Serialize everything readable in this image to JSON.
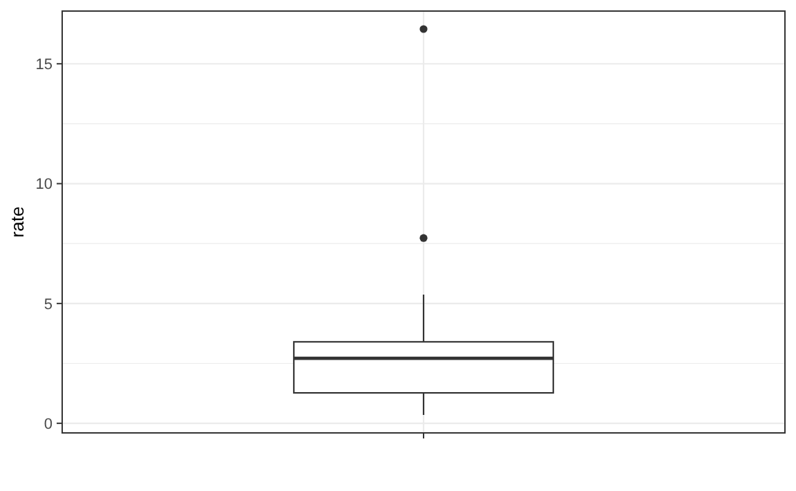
{
  "chart_data": {
    "type": "box",
    "ylabel": "rate",
    "categories": [
      null
    ],
    "boxes": [
      {
        "low": 0.35,
        "q1": 1.27,
        "median": 2.71,
        "q3": 3.4,
        "high": 5.37,
        "outliers": [
          7.73,
          16.45
        ]
      }
    ],
    "ylim": [
      -0.4,
      17.2
    ],
    "yticks": [
      0,
      {
        "value": 2.5,
        "label": null
      },
      5,
      {
        "value": 7.5,
        "label": null
      },
      10,
      {
        "value": 12.5,
        "label": null
      },
      15
    ],
    "grid": true
  }
}
